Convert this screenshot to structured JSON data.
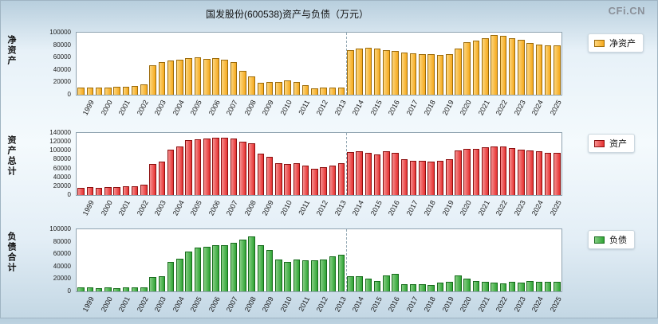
{
  "page": {
    "title": "国发股份(600538)资产与负债（万元）",
    "watermark": "CFi.CN"
  },
  "divider_after_bar": 30,
  "chart_data": [
    {
      "type": "bar",
      "axis_label": "净资产",
      "legend": "净资产",
      "unit": "万元",
      "color": "#F6A91C",
      "color_light": "#FCD67E",
      "border_color": "#9C6B0A",
      "ylim": [
        0,
        100000
      ],
      "ytick_step": 20000,
      "readings_per_year": 2,
      "years": [
        "1999",
        "2000",
        "2001",
        "2002",
        "2003",
        "2004",
        "2005",
        "2006",
        "2007",
        "2008",
        "2009",
        "2010",
        "2011",
        "2012",
        "2013",
        "2014",
        "2015",
        "2016",
        "2017",
        "2018",
        "2019",
        "2020",
        "2021",
        "2022",
        "2023",
        "2024",
        "2025"
      ],
      "values": [
        11000,
        11500,
        12000,
        12000,
        12500,
        13000,
        14000,
        17000,
        47000,
        52000,
        55000,
        57000,
        59000,
        60000,
        58000,
        59000,
        56000,
        53000,
        38000,
        30000,
        19000,
        20000,
        21000,
        23000,
        20000,
        15000,
        10000,
        11000,
        11000,
        12000,
        72000,
        74000,
        76000,
        75000,
        72000,
        70000,
        68000,
        67000,
        66000,
        65000,
        64000,
        66000,
        74000,
        84000,
        87000,
        91000,
        96000,
        95000,
        91000,
        89000,
        83000,
        81000,
        80000,
        79000
      ]
    },
    {
      "type": "bar",
      "axis_label": "资产总计",
      "legend": "资产",
      "unit": "万元",
      "color": "#E63030",
      "color_light": "#F59090",
      "border_color": "#8B0F0F",
      "ylim": [
        0,
        140000
      ],
      "ytick_step": 20000,
      "readings_per_year": 2,
      "years": [
        "1999",
        "2000",
        "2001",
        "2002",
        "2003",
        "2004",
        "2005",
        "2006",
        "2007",
        "2008",
        "2009",
        "2010",
        "2011",
        "2012",
        "2013",
        "2014",
        "2015",
        "2016",
        "2017",
        "2018",
        "2019",
        "2020",
        "2021",
        "2022",
        "2023",
        "2024",
        "2025"
      ],
      "values": [
        17000,
        17500,
        17000,
        18000,
        18000,
        19000,
        20000,
        23000,
        70000,
        76000,
        103000,
        110000,
        123000,
        126000,
        127000,
        129000,
        130000,
        128000,
        121000,
        117000,
        94000,
        87000,
        72000,
        70000,
        71000,
        66000,
        60000,
        62000,
        67000,
        71000,
        97000,
        99000,
        96000,
        92000,
        98000,
        95000,
        80000,
        78000,
        77000,
        76000,
        78000,
        81000,
        100000,
        104000,
        104000,
        107000,
        110000,
        109000,
        106000,
        103000,
        100000,
        98000,
        96000,
        95000
      ]
    },
    {
      "type": "bar",
      "axis_label": "负债合计",
      "legend": "负债",
      "unit": "万元",
      "color": "#2FA434",
      "color_light": "#86CE84",
      "border_color": "#176B1C",
      "ylim": [
        0,
        100000
      ],
      "ytick_step": 20000,
      "readings_per_year": 2,
      "years": [
        "1999",
        "2000",
        "2001",
        "2002",
        "2003",
        "2004",
        "2005",
        "2006",
        "2007",
        "2008",
        "2009",
        "2010",
        "2011",
        "2012",
        "2013",
        "2014",
        "2015",
        "2016",
        "2017",
        "2018",
        "2019",
        "2020",
        "2021",
        "2022",
        "2023",
        "2024",
        "2025"
      ],
      "values": [
        6000,
        6000,
        5000,
        6000,
        5500,
        6000,
        6000,
        6500,
        23000,
        24000,
        48000,
        53000,
        64000,
        71000,
        72000,
        74000,
        75000,
        78000,
        83000,
        88000,
        75000,
        67000,
        51000,
        47000,
        51000,
        50000,
        50000,
        51000,
        56000,
        59000,
        25000,
        25000,
        20000,
        17000,
        26000,
        28000,
        12000,
        11000,
        11000,
        10000,
        14000,
        15000,
        26000,
        20000,
        17000,
        16000,
        14000,
        13000,
        15000,
        14000,
        17000,
        16000,
        16000,
        15000
      ]
    }
  ]
}
